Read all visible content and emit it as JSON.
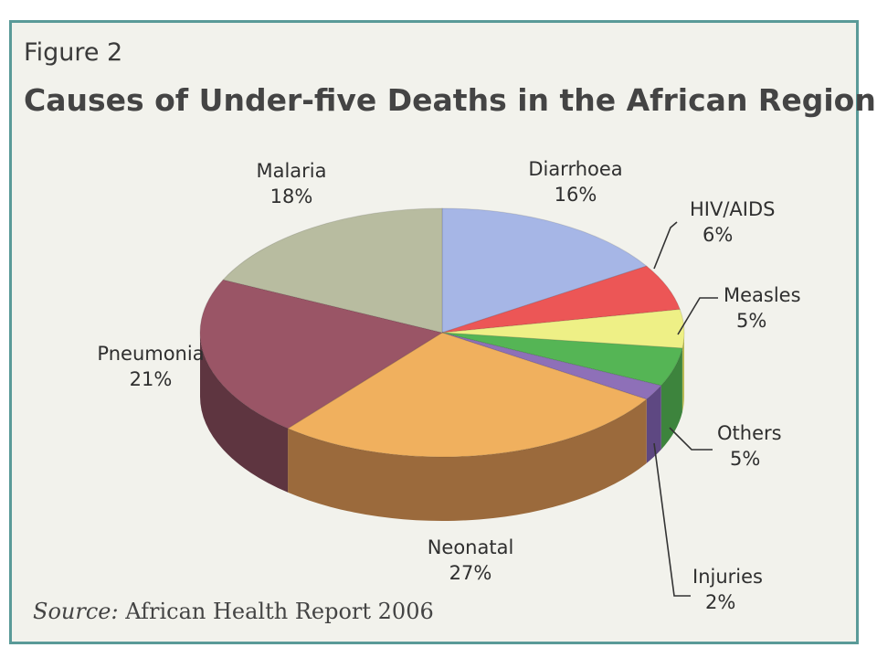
{
  "figure_label": "Figure 2",
  "title": "Causes of Under-five Deaths in the African Region",
  "source": {
    "label": "Source:",
    "text": "African Health Report 2006"
  },
  "chart_data": {
    "type": "pie",
    "title": "Causes of Under-five Deaths in the African Region",
    "legend": "none",
    "slices": [
      {
        "name": "Diarrhoea",
        "value": 16,
        "label": "16%",
        "color": "#a6b6e6",
        "side": "#7f8fbf"
      },
      {
        "name": "HIV/AIDS",
        "value": 6,
        "label": "6%",
        "color": "#ec5656",
        "side": "#b33d3d"
      },
      {
        "name": "Measles",
        "value": 5,
        "label": "5%",
        "color": "#eef086",
        "side": "#b8ba55"
      },
      {
        "name": "Others",
        "value": 5,
        "label": "5%",
        "color": "#55b555",
        "side": "#3d843d"
      },
      {
        "name": "Injuries",
        "value": 2,
        "label": "2%",
        "color": "#8e70b8",
        "side": "#5e4882"
      },
      {
        "name": "Neonatal",
        "value": 27,
        "label": "27%",
        "color": "#f0b05e",
        "side": "#9b6a3c"
      },
      {
        "name": "Pneumonia",
        "value": 21,
        "label": "21%",
        "color": "#9a5566",
        "side": "#5e3540"
      },
      {
        "name": "Malaria",
        "value": 18,
        "label": "18%",
        "color": "#b8bca0",
        "side": "#85896e"
      }
    ]
  }
}
